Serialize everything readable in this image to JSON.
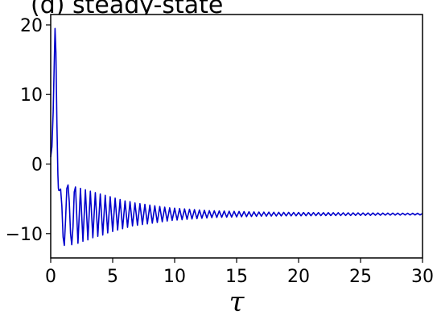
{
  "chart_data": {
    "type": "line",
    "title": "(d) steady-state",
    "xlabel": "τ",
    "ylabel": "",
    "xlim": [
      0,
      30
    ],
    "ylim": [
      -13.5,
      21.5
    ],
    "xticks": [
      0,
      5,
      10,
      15,
      20,
      25,
      30
    ],
    "yticks": [
      -10,
      0,
      10,
      20
    ],
    "x_tick_labels": [
      "0",
      "5",
      "10",
      "15",
      "20",
      "25",
      "30"
    ],
    "y_tick_labels": [
      "−10",
      "0",
      "10",
      "20"
    ],
    "grid": false,
    "legend": "none",
    "series": [
      {
        "color": "#0000cc",
        "x": [
          0,
          0.1,
          0.2,
          0.28,
          0.35,
          0.42,
          0.5,
          0.58,
          0.62,
          0.66,
          0.72,
          0.8,
          0.9,
          1.0,
          1.1,
          1.2,
          1.3,
          1.4,
          1.5,
          1.6,
          1.7,
          1.8,
          1.9,
          2.0,
          2.2,
          2.4,
          2.6,
          2.8,
          3.0,
          3.2,
          3.4,
          3.6,
          3.8,
          4.0,
          4.2,
          4.4,
          4.6,
          4.8,
          5.0,
          5.2,
          5.4,
          5.6,
          5.8,
          6.0,
          6.2,
          6.4,
          6.6,
          6.8,
          7.0,
          7.2,
          7.4,
          7.6,
          7.8,
          8.0,
          8.2,
          8.4,
          8.6,
          8.8,
          9.0,
          9.2,
          9.4,
          9.6,
          9.8,
          10.0,
          10.2,
          10.4,
          10.6,
          10.8,
          11.0,
          11.2,
          11.4,
          11.6,
          11.8,
          12.0,
          12.2,
          12.4,
          12.6,
          12.8,
          13.0,
          13.2,
          13.4,
          13.6,
          13.8,
          14.0,
          14.2,
          14.4,
          14.6,
          14.8,
          15.0,
          15.2,
          15.4,
          15.6,
          15.8,
          16.0,
          16.2,
          16.4,
          16.6,
          16.8,
          17.0,
          17.2,
          17.4,
          17.6,
          17.8,
          18.0,
          18.2,
          18.4,
          18.6,
          18.8,
          19.0,
          19.2,
          19.4,
          19.6,
          19.8,
          20.0,
          20.2,
          20.4,
          20.6,
          20.8,
          21.0,
          21.2,
          21.4,
          21.6,
          21.8,
          22.0,
          22.2,
          22.4,
          22.6,
          22.8,
          23.0,
          23.2,
          23.4,
          23.6,
          23.8,
          24.0,
          24.2,
          24.4,
          24.6,
          24.8,
          25.0,
          25.2,
          25.4,
          25.6,
          25.8,
          26.0,
          26.2,
          26.4,
          26.6,
          26.8,
          27.0,
          27.2,
          27.4,
          27.6,
          27.8,
          28.0,
          28.2,
          28.4,
          28.6,
          28.8,
          29.0,
          29.2,
          29.4,
          29.6,
          29.8,
          30.0
        ],
        "y": [
          1.0,
          2.5,
          7.5,
          14.0,
          19.5,
          16.0,
          6.0,
          -1.5,
          -3.5,
          -3.8,
          -3.8,
          -3.6,
          -6.0,
          -10.5,
          -11.7,
          -8.0,
          -3.5,
          -3.0,
          -5.5,
          -10.0,
          -11.6,
          -9.0,
          -4.0,
          -3.3,
          -11.4,
          -3.5,
          -11.1,
          -3.7,
          -10.9,
          -3.9,
          -10.6,
          -4.1,
          -10.4,
          -4.3,
          -10.2,
          -4.5,
          -9.9,
          -4.7,
          -9.7,
          -4.9,
          -9.5,
          -5.1,
          -9.3,
          -5.3,
          -9.1,
          -5.4,
          -8.9,
          -5.6,
          -8.8,
          -5.7,
          -8.7,
          -5.8,
          -8.6,
          -5.9,
          -8.5,
          -6.0,
          -8.4,
          -6.1,
          -8.3,
          -6.2,
          -8.2,
          -6.3,
          -8.1,
          -6.35,
          -8.05,
          -6.4,
          -8.0,
          -6.45,
          -7.95,
          -6.5,
          -7.9,
          -6.55,
          -7.85,
          -6.6,
          -7.8,
          -6.65,
          -7.75,
          -6.7,
          -7.7,
          -6.72,
          -7.68,
          -6.74,
          -7.66,
          -6.76,
          -7.64,
          -6.78,
          -7.62,
          -6.8,
          -7.6,
          -6.82,
          -7.58,
          -6.84,
          -7.56,
          -6.86,
          -7.54,
          -6.88,
          -7.52,
          -6.9,
          -7.5,
          -6.91,
          -7.49,
          -6.92,
          -7.48,
          -6.93,
          -7.47,
          -6.94,
          -7.46,
          -6.95,
          -7.45,
          -6.95,
          -7.45,
          -6.96,
          -7.44,
          -6.96,
          -7.44,
          -6.97,
          -7.43,
          -6.97,
          -7.43,
          -6.98,
          -7.42,
          -6.98,
          -7.42,
          -6.99,
          -7.41,
          -6.99,
          -7.41,
          -7.0,
          -7.4,
          -7.0,
          -7.4,
          -7.01,
          -7.39,
          -7.01,
          -7.39,
          -7.02,
          -7.38,
          -7.02,
          -7.38,
          -7.03,
          -7.37,
          -7.03,
          -7.37,
          -7.04,
          -7.36,
          -7.04,
          -7.36,
          -7.05,
          -7.35,
          -7.05,
          -7.35,
          -7.06,
          -7.34,
          -7.06,
          -7.34,
          -7.07,
          -7.33,
          -7.07,
          -7.33,
          -7.08,
          -7.32,
          -7.08,
          -7.32,
          -7.1
        ]
      }
    ]
  }
}
